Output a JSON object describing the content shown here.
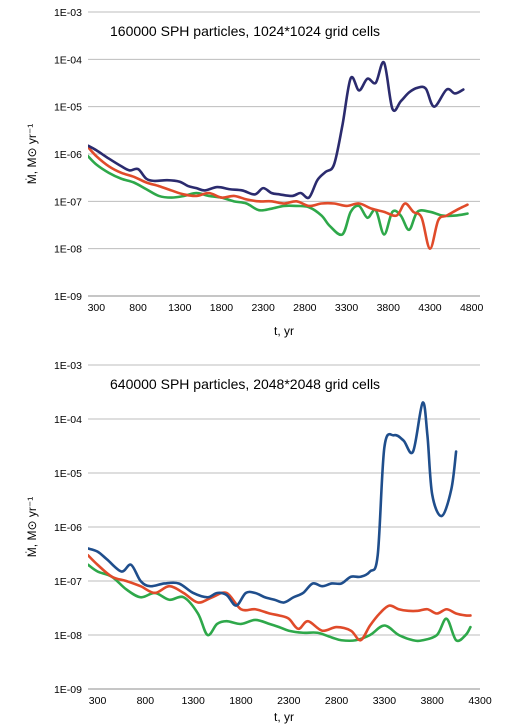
{
  "chart_data": [
    {
      "type": "line",
      "title": "160000 SPH particles, 1024*1024 grid cells",
      "xlabel": "t, yr",
      "ylabel": "Ṁ, M⊙ yr⁻¹",
      "y_scale": "log",
      "xlim": [
        200,
        4900
      ],
      "ylim": [
        1e-09,
        0.001
      ],
      "x_ticks": [
        300,
        800,
        1300,
        1800,
        2300,
        2800,
        3300,
        3800,
        4300,
        4800
      ],
      "y_ticks": [
        "1E-09",
        "1E-08",
        "1E-07",
        "1E-06",
        "1E-05",
        "1E-04",
        "1E-03"
      ],
      "grid": "horizontal",
      "series": [
        {
          "color": "#2b2b6e",
          "x": [
            200,
            300,
            450,
            600,
            700,
            800,
            900,
            1000,
            1150,
            1300,
            1400,
            1500,
            1600,
            1750,
            1900,
            2050,
            2200,
            2300,
            2400,
            2500,
            2650,
            2750,
            2850,
            2950,
            3050,
            3150,
            3250,
            3350,
            3450,
            3550,
            3650,
            3750,
            3850,
            3950,
            4050,
            4150,
            4250,
            4350,
            4500,
            4600,
            4700
          ],
          "y": [
            1.5e-06,
            1.2e-06,
            8e-07,
            5.5e-07,
            4.5e-07,
            4.8e-07,
            3e-07,
            2.7e-07,
            2.8e-07,
            2.6e-07,
            2.1e-07,
            1.9e-07,
            1.7e-07,
            2e-07,
            1.8e-07,
            1.7e-07,
            1.4e-07,
            1.9e-07,
            1.5e-07,
            1.4e-07,
            1.3e-07,
            1.5e-07,
            1.2e-07,
            2.8e-07,
            4.2e-07,
            6e-07,
            4e-06,
            4e-05,
            2.2e-05,
            3.9e-05,
            3.2e-05,
            8.5e-05,
            9e-06,
            1.3e-05,
            2e-05,
            2.5e-05,
            2.4e-05,
            1e-05,
            2.3e-05,
            1.9e-05,
            2.3e-05
          ]
        },
        {
          "color": "#e04b2a",
          "x": [
            200,
            300,
            450,
            600,
            750,
            900,
            1050,
            1200,
            1350,
            1500,
            1650,
            1800,
            1950,
            2100,
            2250,
            2400,
            2550,
            2700,
            2850,
            3000,
            3150,
            3300,
            3450,
            3600,
            3750,
            3900,
            4000,
            4100,
            4200,
            4300,
            4400,
            4500,
            4650,
            4750
          ],
          "y": [
            1.4e-06,
            9e-07,
            5.5e-07,
            4e-07,
            3.3e-07,
            2.5e-07,
            2.1e-07,
            1.7e-07,
            1.4e-07,
            1.3e-07,
            1.5e-07,
            1.2e-07,
            1.3e-07,
            1.1e-07,
            1e-07,
            1e-07,
            9e-08,
            1e-07,
            8e-08,
            9e-08,
            9e-08,
            8e-08,
            9e-08,
            7e-08,
            6e-08,
            5e-08,
            9e-08,
            6e-08,
            4.5e-08,
            1e-08,
            4e-08,
            5e-08,
            7e-08,
            8.5e-08
          ]
        },
        {
          "color": "#2ea84a",
          "x": [
            200,
            300,
            450,
            600,
            750,
            900,
            1050,
            1200,
            1350,
            1500,
            1650,
            1800,
            1950,
            2100,
            2250,
            2400,
            2550,
            2700,
            2850,
            3000,
            3100,
            3250,
            3350,
            3450,
            3550,
            3650,
            3750,
            3850,
            3950,
            4050,
            4150,
            4300,
            4450,
            4600,
            4750
          ],
          "y": [
            9e-07,
            6e-07,
            4e-07,
            3e-07,
            2.5e-07,
            1.8e-07,
            1.3e-07,
            1.2e-07,
            1.3e-07,
            1.5e-07,
            1.3e-07,
            1.2e-07,
            1e-07,
            9e-08,
            6.5e-08,
            7e-08,
            8e-08,
            8e-08,
            7.5e-08,
            5e-08,
            3e-08,
            2e-08,
            6e-08,
            8e-08,
            4.5e-08,
            6.5e-08,
            2e-08,
            6e-08,
            5e-08,
            2.5e-08,
            6e-08,
            6e-08,
            5e-08,
            5e-08,
            5.5e-08
          ]
        }
      ]
    },
    {
      "type": "line",
      "title": "640000 SPH particles, 2048*2048 grid cells",
      "xlabel": "t, yr",
      "ylabel": "Ṁ, M⊙ yr⁻¹",
      "y_scale": "log",
      "xlim": [
        200,
        4300
      ],
      "ylim": [
        1e-09,
        0.001
      ],
      "x_ticks": [
        300,
        800,
        1300,
        1800,
        2300,
        2800,
        3300,
        3800,
        4300
      ],
      "y_ticks": [
        "1E-09",
        "1E-08",
        "1E-07",
        "1E-06",
        "1E-05",
        "1E-04",
        "1E-03"
      ],
      "grid": "horizontal",
      "series": [
        {
          "color": "#1f4e8c",
          "x": [
            200,
            300,
            400,
            550,
            650,
            750,
            850,
            1000,
            1150,
            1300,
            1450,
            1550,
            1650,
            1750,
            1850,
            1950,
            2050,
            2150,
            2250,
            2350,
            2450,
            2550,
            2650,
            2750,
            2850,
            2950,
            3050,
            3150,
            3230,
            3300,
            3400,
            3500,
            3600,
            3700,
            3750,
            3800,
            3900,
            4000,
            4050
          ],
          "y": [
            4e-07,
            3.5e-07,
            2.5e-07,
            1.5e-07,
            2e-07,
            1e-07,
            8e-08,
            9e-08,
            9e-08,
            6e-08,
            5e-08,
            6e-08,
            5.5e-08,
            3.5e-08,
            6e-08,
            6e-08,
            5e-08,
            4.5e-08,
            4e-08,
            5e-08,
            6e-08,
            9e-08,
            8e-08,
            9e-08,
            9e-08,
            1.2e-07,
            1.2e-07,
            1.5e-07,
            3e-07,
            3e-05,
            5e-05,
            4e-05,
            2.5e-05,
            0.0002,
            5e-05,
            4e-06,
            1.6e-06,
            5e-06,
            2.5e-05
          ]
        },
        {
          "color": "#e04b2a",
          "x": [
            200,
            300,
            450,
            600,
            750,
            900,
            1050,
            1200,
            1350,
            1500,
            1650,
            1800,
            1950,
            2100,
            2200,
            2300,
            2400,
            2500,
            2650,
            2800,
            2950,
            3050,
            3150,
            3250,
            3350,
            3450,
            3550,
            3650,
            3750,
            3850,
            3950,
            4050,
            4150,
            4200
          ],
          "y": [
            3e-07,
            2e-07,
            1.2e-07,
            1e-07,
            8e-08,
            6e-08,
            8e-08,
            6e-08,
            4e-08,
            5e-08,
            6e-08,
            3e-08,
            3e-08,
            2.5e-08,
            2.3e-08,
            2e-08,
            1.3e-08,
            1.8e-08,
            1.2e-08,
            1.4e-08,
            1.2e-08,
            8e-09,
            1.5e-08,
            2.5e-08,
            3.5e-08,
            3e-08,
            2.8e-08,
            2.8e-08,
            3e-08,
            2.5e-08,
            3e-08,
            2.5e-08,
            2.3e-08,
            2.3e-08
          ]
        },
        {
          "color": "#2ea84a",
          "x": [
            200,
            300,
            450,
            600,
            750,
            900,
            1050,
            1200,
            1350,
            1450,
            1550,
            1650,
            1800,
            1950,
            2100,
            2200,
            2300,
            2450,
            2600,
            2750,
            2850,
            3000,
            3150,
            3300,
            3450,
            3600,
            3700,
            3850,
            3950,
            4050,
            4150,
            4200
          ],
          "y": [
            2e-07,
            1.5e-07,
            1.2e-07,
            7e-08,
            5e-08,
            6e-08,
            4.5e-08,
            5e-08,
            2.5e-08,
            1e-08,
            1.6e-08,
            1.8e-08,
            1.6e-08,
            1.9e-08,
            1.6e-08,
            1.4e-08,
            1.2e-08,
            1.1e-08,
            1.1e-08,
            9e-09,
            8e-09,
            8e-09,
            1e-08,
            1.5e-08,
            1e-08,
            8e-09,
            8e-09,
            1e-08,
            2e-08,
            8e-09,
            1e-08,
            1.4e-08
          ]
        }
      ]
    }
  ]
}
